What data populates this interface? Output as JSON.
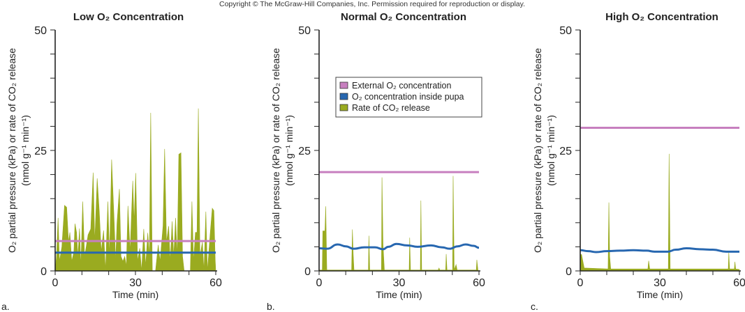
{
  "copyright": "Copyright © The McGraw-Hill Companies, Inc. Permission required for reproduction or display.",
  "colors": {
    "external_o2": "#c77fbf",
    "internal_o2": "#2767b0",
    "co2_release": "#9aab20",
    "axis": "#222222"
  },
  "legend": {
    "placement": "top-right of panel b",
    "entries": [
      "External O₂ concentration",
      "O₂ concentration inside pupa",
      "Rate of CO₂ release"
    ]
  },
  "chart_data": [
    {
      "type": "area",
      "panel_letter": "a.",
      "title": "Low O₂ Concentration",
      "xlabel": "Time (min)",
      "ylabel": [
        "O₂ partial pressure (kPa) or rate of CO₂ release",
        "(nmol g⁻¹ min⁻¹)"
      ],
      "xlim": [
        0,
        60
      ],
      "ylim": [
        0,
        50
      ],
      "xticks": [
        0,
        30,
        60
      ],
      "yticks": [
        0,
        25,
        50
      ],
      "grid": false,
      "external_o2": 6.2,
      "internal_o2": {
        "x": [
          0,
          60
        ],
        "y": [
          3.8,
          3.8
        ]
      },
      "co2_release": {
        "x": [
          0,
          0.5,
          1.1,
          1.6,
          2.5,
          3.5,
          4.3,
          5,
          5.5,
          6.2,
          7,
          7.4,
          8,
          8.5,
          9.1,
          9.6,
          10.3,
          11,
          11.6,
          12.3,
          13.3,
          14.2,
          14.8,
          15.7,
          16.5,
          17.2,
          18.1,
          18.8,
          19.7,
          20.3,
          21.1,
          22,
          22.6,
          23.1,
          24,
          24.6,
          25.3,
          26,
          26.6,
          27.2,
          28,
          29,
          29.5,
          30.1,
          30.8,
          31.6,
          32.3,
          33.1,
          33.8,
          34.6,
          35.2,
          35.7,
          36.3,
          37.5,
          38.5,
          39.2,
          40.3,
          40.9,
          41.6,
          42.4,
          43,
          43.7,
          44.3,
          45,
          45.6,
          46.2,
          47,
          47.6,
          48.2,
          50.5,
          51.1,
          51.7,
          52.4,
          53,
          53.5,
          54.1,
          55,
          55.6,
          56.3,
          56.9,
          57.9,
          58.7,
          59.3,
          59.8,
          60
        ],
        "y": [
          0,
          3,
          11,
          2,
          5,
          13.6,
          13.2,
          6,
          8,
          2,
          4,
          9.8,
          8,
          3,
          8.8,
          1,
          14.4,
          3,
          5,
          7.5,
          8.7,
          20.4,
          6,
          19.2,
          12.2,
          4,
          8.4,
          0,
          14.4,
          3,
          23.1,
          11,
          2,
          9.9,
          17,
          3,
          2,
          3,
          1,
          13.5,
          4,
          18.7,
          10,
          20.3,
          2,
          4.7,
          0,
          8.7,
          1,
          7.9,
          3,
          32.8,
          0,
          0,
          5.4,
          2,
          9.3,
          25.3,
          6,
          9.3,
          2,
          10.3,
          3,
          11,
          3,
          24.2,
          24.5,
          3,
          0,
          0,
          14.4,
          2,
          8,
          8,
          33.7,
          3,
          6,
          0,
          12.3,
          0,
          7.6,
          13,
          12.5,
          2.3,
          0
        ]
      }
    },
    {
      "type": "area",
      "panel_letter": "b.",
      "title": "Normal O₂ Concentration",
      "xlabel": "Time (min)",
      "ylabel": [
        "O₂ partial pressure (kPa) or rate of CO₂ release",
        "(nmol g⁻¹ min⁻¹)"
      ],
      "xlim": [
        0,
        60
      ],
      "ylim": [
        0,
        50
      ],
      "xticks": [
        0,
        30,
        60
      ],
      "yticks": [
        0,
        25,
        50
      ],
      "grid": false,
      "external_o2": 20.5,
      "internal_o2": {
        "x": [
          0,
          3,
          7,
          10,
          13,
          17,
          21,
          24,
          26,
          29,
          33,
          37,
          42,
          46,
          49,
          52,
          55,
          58,
          60
        ],
        "y": [
          4.7,
          4.6,
          5.5,
          5.1,
          4.6,
          4.9,
          4.9,
          4.5,
          5.0,
          5.6,
          5.3,
          5.0,
          5.3,
          4.9,
          4.6,
          5.1,
          5.5,
          5.2,
          4.8
        ]
      },
      "co2_release": {
        "x": [
          0,
          1.2,
          1.4,
          2.2,
          2.5,
          2.9,
          12.2,
          12.5,
          12.8,
          13.1,
          18.5,
          18.7,
          19,
          23.4,
          23.6,
          24,
          24.5,
          33.8,
          34,
          34.3,
          38,
          38.2,
          38.5,
          44.7,
          45,
          45.3,
          47.5,
          47.7,
          48,
          50.1,
          50.3,
          50.7,
          51.4,
          51.8,
          59,
          59.2,
          59.6,
          60
        ],
        "y": [
          0.2,
          0.2,
          8.3,
          8.3,
          13.4,
          0.2,
          0.2,
          8.6,
          3.5,
          0.2,
          0.2,
          7.3,
          0.2,
          0.2,
          19.4,
          5.4,
          0.2,
          0.2,
          6.9,
          0.2,
          0.2,
          14.6,
          0.2,
          0.2,
          0.6,
          0.2,
          0.2,
          3.5,
          0.2,
          0.2,
          19.7,
          0.2,
          1.3,
          0.2,
          0.2,
          2.3,
          0.2,
          0
        ]
      }
    },
    {
      "type": "area",
      "panel_letter": "c.",
      "title": "High O₂ Concentration",
      "xlabel": "Time (min)",
      "ylabel": [
        "O₂ partial pressure (kPa) or rate of CO₂ release",
        "(nmol g⁻¹ min⁻¹)"
      ],
      "xlim": [
        0,
        60
      ],
      "ylim": [
        0,
        50
      ],
      "xticks": [
        0,
        30,
        60
      ],
      "yticks": [
        0,
        25,
        50
      ],
      "grid": false,
      "external_o2": 29.7,
      "internal_o2": {
        "x": [
          0,
          3,
          6,
          10,
          15,
          20,
          25,
          28,
          33,
          36,
          40,
          45,
          50,
          55,
          60
        ],
        "y": [
          4.3,
          4.1,
          3.9,
          4.1,
          4.2,
          4.3,
          4.2,
          4.0,
          4.0,
          4.4,
          4.7,
          4.5,
          4.4,
          4.0,
          4.0
        ]
      },
      "co2_release": {
        "x": [
          0,
          0.5,
          1.5,
          10.5,
          10.8,
          11.1,
          11.5,
          25.5,
          25.8,
          26.2,
          33.2,
          33.5,
          33.9,
          55.8,
          56,
          56.3,
          58.1,
          58.3,
          58.6,
          60
        ],
        "y": [
          3.4,
          3.4,
          0.6,
          0.4,
          14.2,
          3,
          0.4,
          0.4,
          2.1,
          0.4,
          0.4,
          24.3,
          0.4,
          0.4,
          3.8,
          0.4,
          0.4,
          1.9,
          0.4,
          0.3
        ]
      }
    }
  ]
}
